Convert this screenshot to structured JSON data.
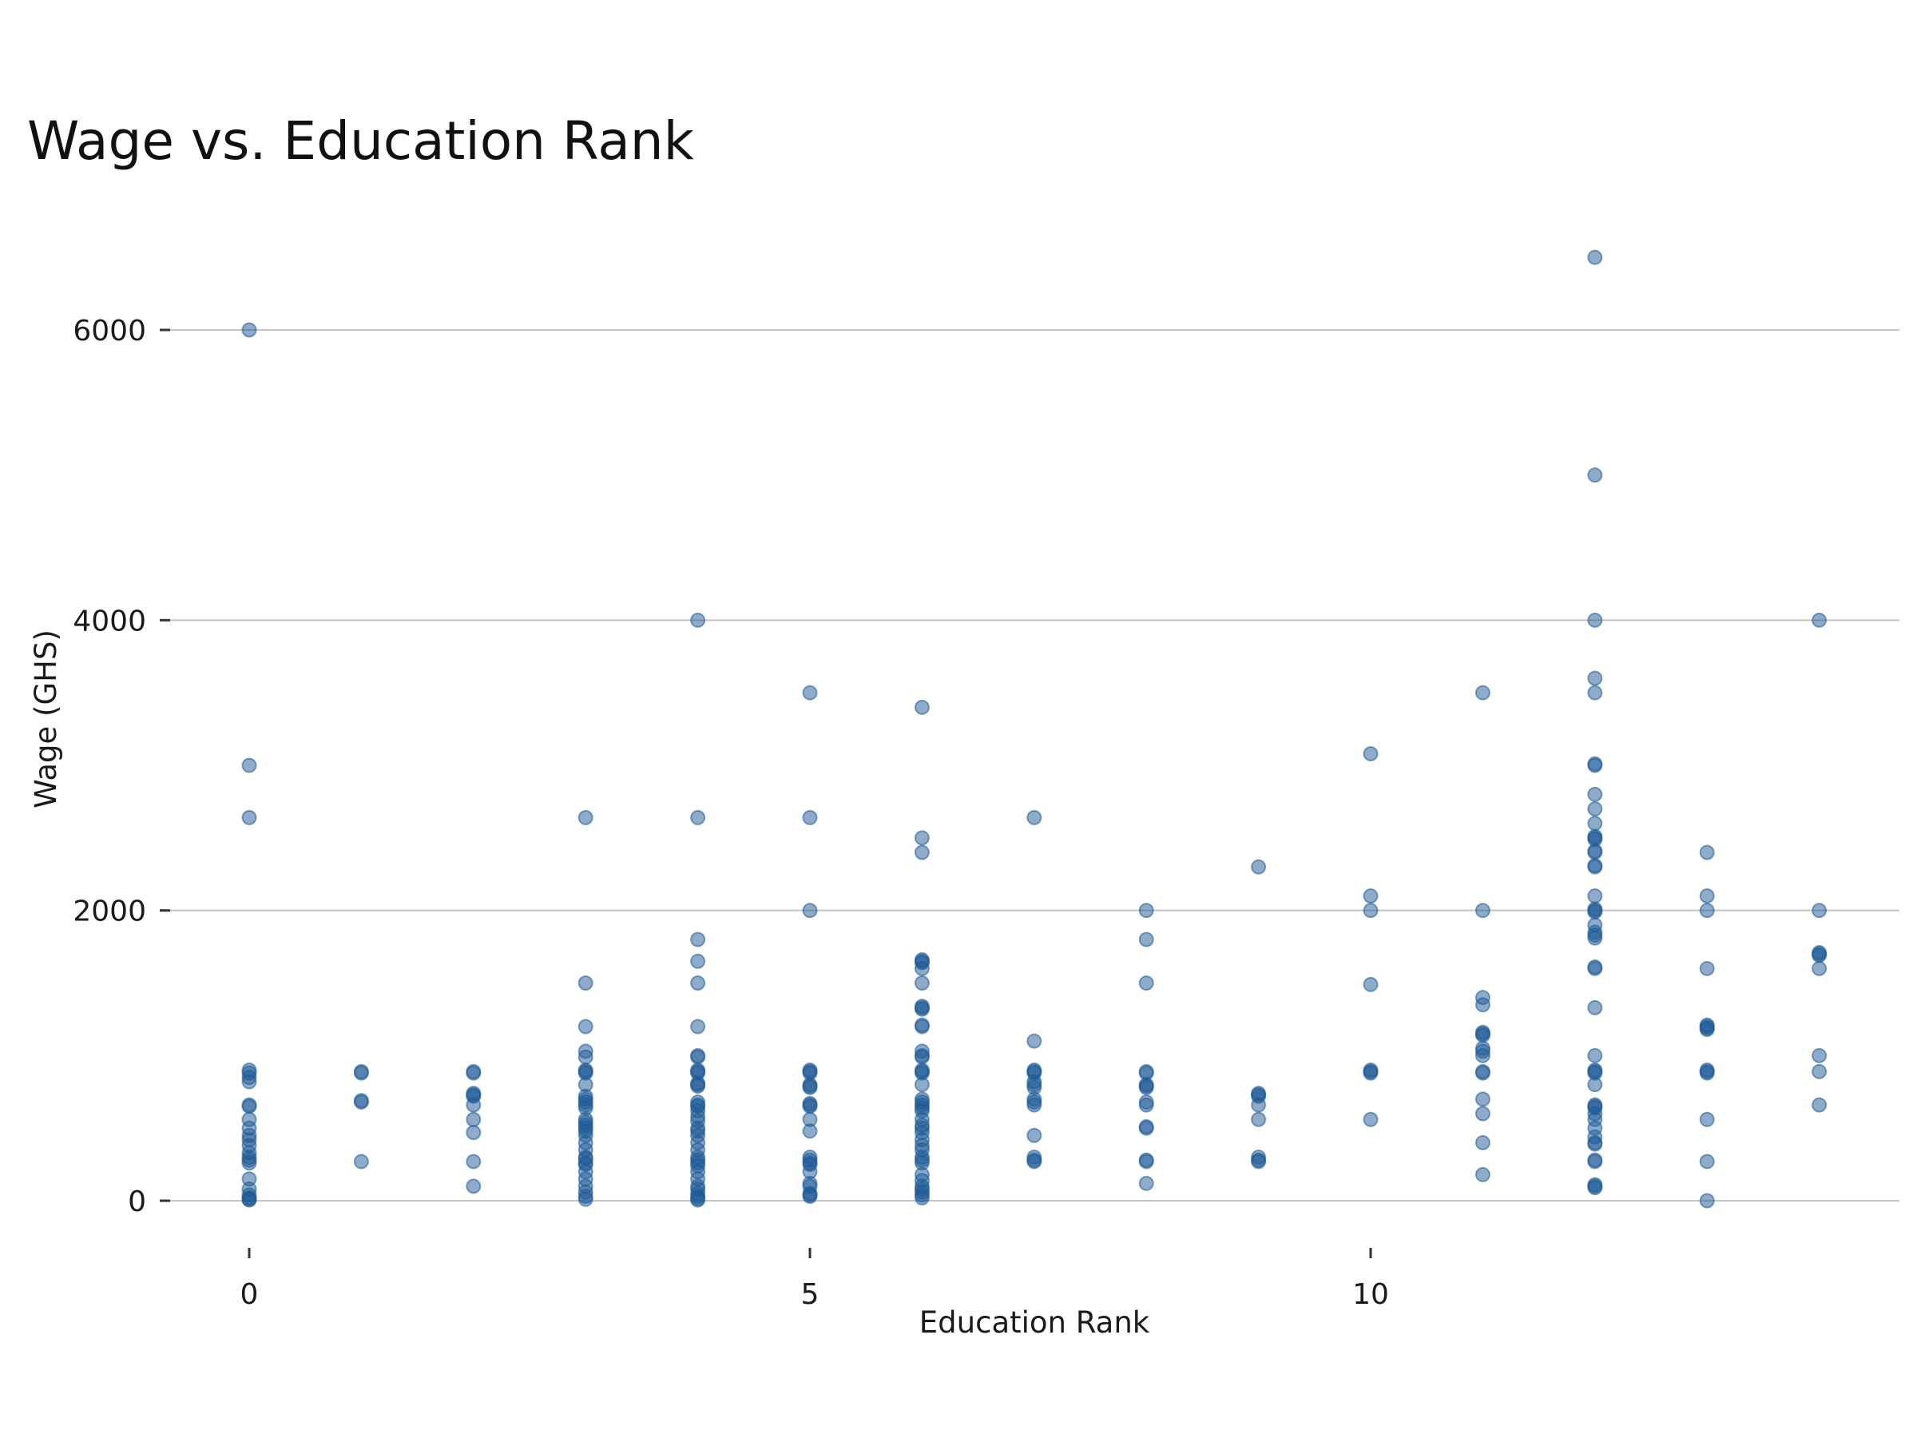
{
  "chart_data": {
    "type": "scatter",
    "title": "Wage vs. Education Rank",
    "xlabel": "Education Rank",
    "ylabel": "Wage (GHS)",
    "x_ticks": [
      0,
      5,
      10
    ],
    "y_ticks": [
      0,
      2000,
      4000,
      6000
    ],
    "xlim": [
      -0.7,
      14.7
    ],
    "ylim": [
      -500,
      6900
    ],
    "grid": "horizontal",
    "point_color": "#1f5a96",
    "points": [
      [
        0,
        6000
      ],
      [
        0,
        3000
      ],
      [
        0,
        2640
      ],
      [
        0,
        900
      ],
      [
        0,
        880
      ],
      [
        0,
        850
      ],
      [
        0,
        820
      ],
      [
        0,
        660
      ],
      [
        0,
        650
      ],
      [
        0,
        560
      ],
      [
        0,
        500
      ],
      [
        0,
        450
      ],
      [
        0,
        420
      ],
      [
        0,
        380
      ],
      [
        0,
        330
      ],
      [
        0,
        300
      ],
      [
        0,
        280
      ],
      [
        0,
        260
      ],
      [
        0,
        150
      ],
      [
        0,
        80
      ],
      [
        0,
        40
      ],
      [
        0,
        20
      ],
      [
        0,
        10
      ],
      [
        0,
        5
      ],
      [
        1,
        890
      ],
      [
        1,
        880
      ],
      [
        1,
        690
      ],
      [
        1,
        680
      ],
      [
        1,
        270
      ],
      [
        2,
        890
      ],
      [
        2,
        880
      ],
      [
        2,
        740
      ],
      [
        2,
        730
      ],
      [
        2,
        720
      ],
      [
        2,
        660
      ],
      [
        2,
        560
      ],
      [
        2,
        470
      ],
      [
        2,
        270
      ],
      [
        2,
        100
      ],
      [
        3,
        2640
      ],
      [
        3,
        1500
      ],
      [
        3,
        1200
      ],
      [
        3,
        1030
      ],
      [
        3,
        990
      ],
      [
        3,
        900
      ],
      [
        3,
        890
      ],
      [
        3,
        880
      ],
      [
        3,
        800
      ],
      [
        3,
        720
      ],
      [
        3,
        700
      ],
      [
        3,
        680
      ],
      [
        3,
        660
      ],
      [
        3,
        640
      ],
      [
        3,
        560
      ],
      [
        3,
        540
      ],
      [
        3,
        520
      ],
      [
        3,
        500
      ],
      [
        3,
        480
      ],
      [
        3,
        450
      ],
      [
        3,
        400
      ],
      [
        3,
        350
      ],
      [
        3,
        300
      ],
      [
        3,
        290
      ],
      [
        3,
        260
      ],
      [
        3,
        250
      ],
      [
        3,
        200
      ],
      [
        3,
        150
      ],
      [
        3,
        100
      ],
      [
        3,
        60
      ],
      [
        3,
        30
      ],
      [
        3,
        10
      ],
      [
        4,
        4000
      ],
      [
        4,
        2640
      ],
      [
        4,
        1800
      ],
      [
        4,
        1650
      ],
      [
        4,
        1500
      ],
      [
        4,
        1200
      ],
      [
        4,
        1000
      ],
      [
        4,
        990
      ],
      [
        4,
        900
      ],
      [
        4,
        890
      ],
      [
        4,
        880
      ],
      [
        4,
        810
      ],
      [
        4,
        800
      ],
      [
        4,
        790
      ],
      [
        4,
        680
      ],
      [
        4,
        660
      ],
      [
        4,
        650
      ],
      [
        4,
        620
      ],
      [
        4,
        580
      ],
      [
        4,
        550
      ],
      [
        4,
        500
      ],
      [
        4,
        480
      ],
      [
        4,
        450
      ],
      [
        4,
        400
      ],
      [
        4,
        350
      ],
      [
        4,
        300
      ],
      [
        4,
        280
      ],
      [
        4,
        260
      ],
      [
        4,
        240
      ],
      [
        4,
        200
      ],
      [
        4,
        150
      ],
      [
        4,
        100
      ],
      [
        4,
        80
      ],
      [
        4,
        50
      ],
      [
        4,
        30
      ],
      [
        4,
        15
      ],
      [
        4,
        5
      ],
      [
        5,
        3500
      ],
      [
        5,
        2640
      ],
      [
        5,
        2000
      ],
      [
        5,
        900
      ],
      [
        5,
        890
      ],
      [
        5,
        880
      ],
      [
        5,
        800
      ],
      [
        5,
        790
      ],
      [
        5,
        780
      ],
      [
        5,
        670
      ],
      [
        5,
        660
      ],
      [
        5,
        650
      ],
      [
        5,
        560
      ],
      [
        5,
        480
      ],
      [
        5,
        300
      ],
      [
        5,
        280
      ],
      [
        5,
        260
      ],
      [
        5,
        250
      ],
      [
        5,
        200
      ],
      [
        5,
        120
      ],
      [
        5,
        100
      ],
      [
        5,
        50
      ],
      [
        5,
        40
      ],
      [
        5,
        30
      ],
      [
        6,
        3400
      ],
      [
        6,
        2500
      ],
      [
        6,
        2400
      ],
      [
        6,
        1660
      ],
      [
        6,
        1650
      ],
      [
        6,
        1640
      ],
      [
        6,
        1600
      ],
      [
        6,
        1500
      ],
      [
        6,
        1340
      ],
      [
        6,
        1330
      ],
      [
        6,
        1320
      ],
      [
        6,
        1210
      ],
      [
        6,
        1200
      ],
      [
        6,
        1030
      ],
      [
        6,
        1000
      ],
      [
        6,
        990
      ],
      [
        6,
        900
      ],
      [
        6,
        890
      ],
      [
        6,
        880
      ],
      [
        6,
        800
      ],
      [
        6,
        700
      ],
      [
        6,
        680
      ],
      [
        6,
        660
      ],
      [
        6,
        640
      ],
      [
        6,
        620
      ],
      [
        6,
        560
      ],
      [
        6,
        520
      ],
      [
        6,
        500
      ],
      [
        6,
        470
      ],
      [
        6,
        420
      ],
      [
        6,
        380
      ],
      [
        6,
        350
      ],
      [
        6,
        300
      ],
      [
        6,
        280
      ],
      [
        6,
        260
      ],
      [
        6,
        180
      ],
      [
        6,
        140
      ],
      [
        6,
        100
      ],
      [
        6,
        80
      ],
      [
        6,
        60
      ],
      [
        6,
        40
      ],
      [
        6,
        20
      ],
      [
        7,
        2640
      ],
      [
        7,
        1100
      ],
      [
        7,
        900
      ],
      [
        7,
        890
      ],
      [
        7,
        880
      ],
      [
        7,
        820
      ],
      [
        7,
        800
      ],
      [
        7,
        780
      ],
      [
        7,
        700
      ],
      [
        7,
        680
      ],
      [
        7,
        660
      ],
      [
        7,
        450
      ],
      [
        7,
        300
      ],
      [
        7,
        280
      ],
      [
        7,
        270
      ],
      [
        8,
        2000
      ],
      [
        8,
        1800
      ],
      [
        8,
        1500
      ],
      [
        8,
        890
      ],
      [
        8,
        880
      ],
      [
        8,
        800
      ],
      [
        8,
        790
      ],
      [
        8,
        780
      ],
      [
        8,
        680
      ],
      [
        8,
        660
      ],
      [
        8,
        510
      ],
      [
        8,
        500
      ],
      [
        8,
        280
      ],
      [
        8,
        270
      ],
      [
        8,
        120
      ],
      [
        9,
        2300
      ],
      [
        9,
        740
      ],
      [
        9,
        730
      ],
      [
        9,
        720
      ],
      [
        9,
        660
      ],
      [
        9,
        560
      ],
      [
        9,
        300
      ],
      [
        9,
        280
      ],
      [
        9,
        270
      ],
      [
        10,
        3080
      ],
      [
        10,
        2100
      ],
      [
        10,
        2000
      ],
      [
        10,
        1490
      ],
      [
        10,
        900
      ],
      [
        10,
        890
      ],
      [
        10,
        880
      ],
      [
        10,
        560
      ],
      [
        11,
        3500
      ],
      [
        11,
        2000
      ],
      [
        11,
        1400
      ],
      [
        11,
        1350
      ],
      [
        11,
        1160
      ],
      [
        11,
        1150
      ],
      [
        11,
        1140
      ],
      [
        11,
        1050
      ],
      [
        11,
        1030
      ],
      [
        11,
        1000
      ],
      [
        11,
        890
      ],
      [
        11,
        880
      ],
      [
        11,
        700
      ],
      [
        11,
        600
      ],
      [
        11,
        400
      ],
      [
        11,
        180
      ],
      [
        12,
        6500
      ],
      [
        12,
        5000
      ],
      [
        12,
        4000
      ],
      [
        12,
        3600
      ],
      [
        12,
        3500
      ],
      [
        12,
        3010
      ],
      [
        12,
        3000
      ],
      [
        12,
        2800
      ],
      [
        12,
        2700
      ],
      [
        12,
        2600
      ],
      [
        12,
        2510
      ],
      [
        12,
        2500
      ],
      [
        12,
        2490
      ],
      [
        12,
        2410
      ],
      [
        12,
        2400
      ],
      [
        12,
        2310
      ],
      [
        12,
        2300
      ],
      [
        12,
        2100
      ],
      [
        12,
        2010
      ],
      [
        12,
        2000
      ],
      [
        12,
        1990
      ],
      [
        12,
        1900
      ],
      [
        12,
        1850
      ],
      [
        12,
        1830
      ],
      [
        12,
        1810
      ],
      [
        12,
        1610
      ],
      [
        12,
        1600
      ],
      [
        12,
        1330
      ],
      [
        12,
        1000
      ],
      [
        12,
        900
      ],
      [
        12,
        890
      ],
      [
        12,
        880
      ],
      [
        12,
        800
      ],
      [
        12,
        660
      ],
      [
        12,
        650
      ],
      [
        12,
        640
      ],
      [
        12,
        600
      ],
      [
        12,
        560
      ],
      [
        12,
        500
      ],
      [
        12,
        440
      ],
      [
        12,
        400
      ],
      [
        12,
        390
      ],
      [
        12,
        280
      ],
      [
        12,
        270
      ],
      [
        12,
        110
      ],
      [
        12,
        100
      ],
      [
        12,
        90
      ],
      [
        13,
        2400
      ],
      [
        13,
        2100
      ],
      [
        13,
        2000
      ],
      [
        13,
        1600
      ],
      [
        13,
        1210
      ],
      [
        13,
        1200
      ],
      [
        13,
        1190
      ],
      [
        13,
        1180
      ],
      [
        13,
        900
      ],
      [
        13,
        890
      ],
      [
        13,
        880
      ],
      [
        13,
        560
      ],
      [
        13,
        270
      ],
      [
        13,
        0
      ],
      [
        14,
        4000
      ],
      [
        14,
        2000
      ],
      [
        14,
        1710
      ],
      [
        14,
        1700
      ],
      [
        14,
        1690
      ],
      [
        14,
        1600
      ],
      [
        14,
        1000
      ],
      [
        14,
        890
      ],
      [
        14,
        660
      ]
    ]
  }
}
